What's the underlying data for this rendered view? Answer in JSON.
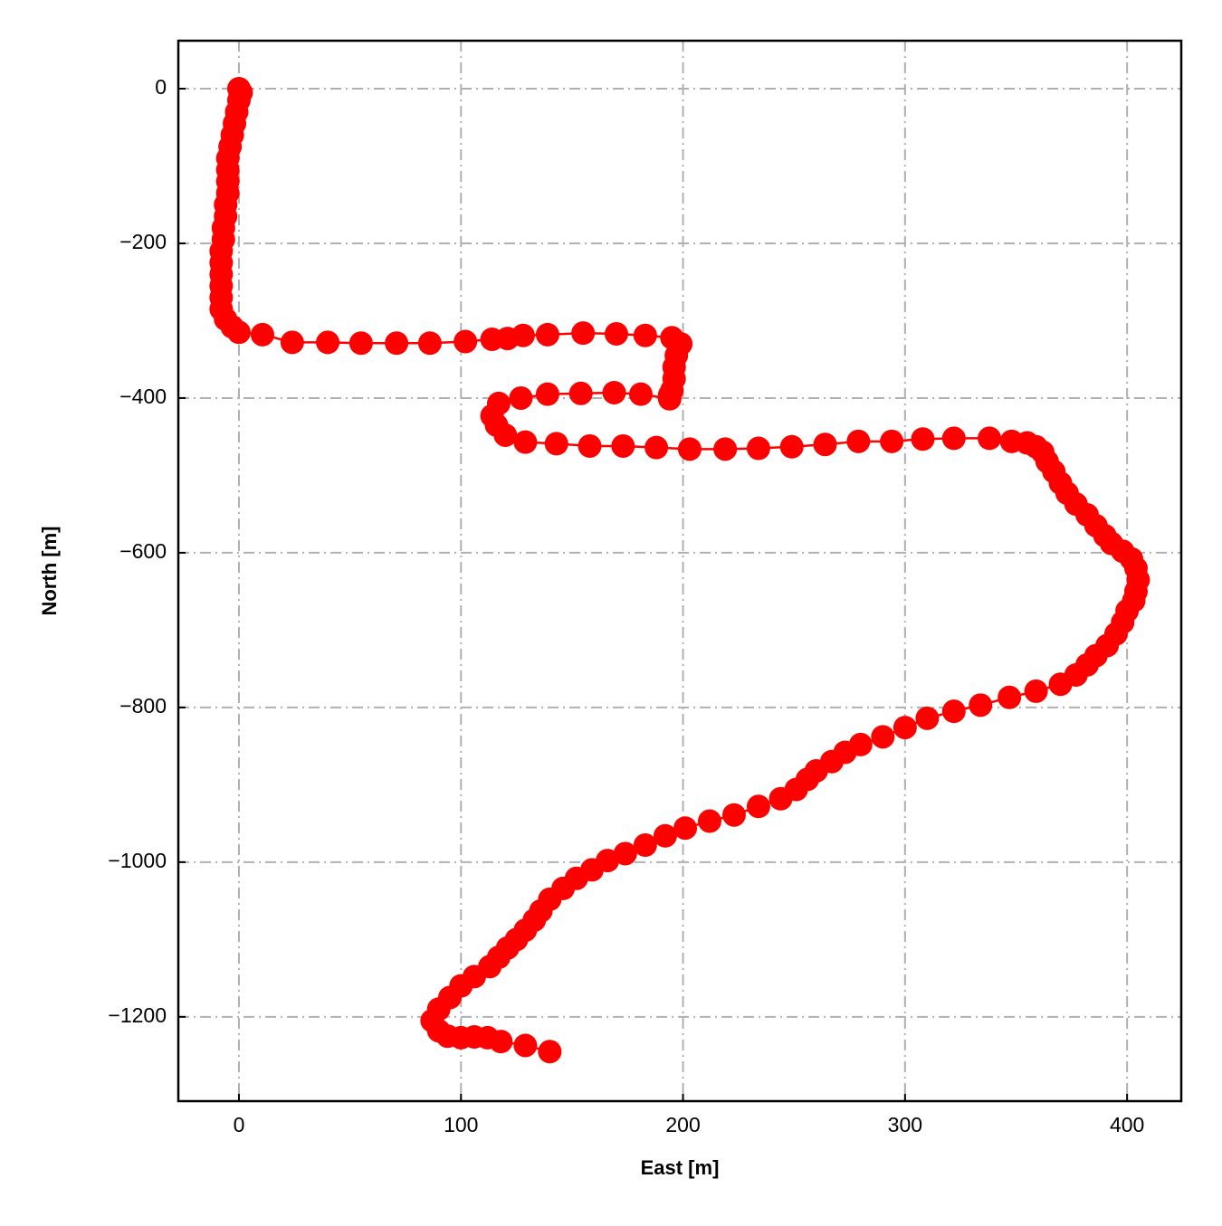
{
  "chart_data": {
    "type": "line",
    "xlabel": "East [m]",
    "ylabel": "North [m]",
    "color": "#ff0000",
    "grid": true,
    "xlim": [
      -27.3,
      424.4
    ],
    "ylim": [
      -1309,
      62
    ],
    "xticks": [
      0,
      100,
      200,
      300,
      400
    ],
    "yticks": [
      0,
      {
        "value": -200,
        "label": "−200"
      },
      {
        "value": -400,
        "label": "−400"
      },
      {
        "value": -600,
        "label": "−600"
      },
      {
        "value": -800,
        "label": "−800"
      },
      {
        "value": -1000,
        "label": "−1000"
      },
      {
        "value": -1200,
        "label": "−1200"
      }
    ],
    "x": [
      0,
      1,
      0,
      -1,
      -2,
      -3,
      -4,
      -5,
      -5,
      -5,
      -5,
      -6,
      -6,
      -7,
      -7,
      -8,
      -8,
      -8,
      -8,
      -8,
      -8,
      -6,
      -3,
      0,
      10.6,
      24,
      40,
      55,
      71,
      86,
      102,
      114,
      121,
      128,
      139,
      155,
      170,
      183,
      195,
      199,
      197,
      196,
      196,
      195,
      194,
      194,
      181,
      169,
      154,
      139,
      127,
      117,
      114,
      116,
      120,
      129,
      143,
      158,
      173,
      188,
      203,
      219,
      234,
      249,
      264,
      279,
      294,
      308,
      322,
      338,
      348,
      355,
      359,
      362,
      364,
      367,
      370,
      373,
      377,
      382,
      386,
      390,
      393,
      398,
      402,
      404,
      405,
      404,
      403,
      400,
      398,
      395,
      391,
      386,
      382,
      377,
      370,
      359,
      347,
      334,
      322,
      310,
      300,
      290,
      280,
      273,
      267,
      260,
      256,
      251,
      244,
      234,
      223,
      212,
      201,
      192,
      183,
      174,
      166,
      159,
      152,
      146,
      140,
      136,
      133,
      129,
      125,
      121,
      117,
      113,
      106,
      100,
      95,
      90,
      87,
      90,
      94,
      100,
      106,
      112,
      118,
      129,
      140
    ],
    "values": [
      0,
      -5,
      -15,
      -30,
      -45,
      -60,
      -75,
      -90,
      -105,
      -120,
      -135,
      -150,
      -165,
      -180,
      -195,
      -210,
      -225,
      -240,
      -255,
      -270,
      -285,
      -298,
      -308,
      -315,
      -318,
      -328,
      -328,
      -329,
      -329,
      -329,
      -327,
      -324,
      -323,
      -319,
      -318,
      -316,
      -317,
      -319,
      -322,
      -330,
      -345,
      -360,
      -375,
      -390,
      -396,
      -401,
      -395,
      -393,
      -394,
      -395,
      -400,
      -407,
      -423,
      -435,
      -448,
      -457,
      -459,
      -462,
      -462,
      -464,
      -466,
      -466,
      -465,
      -463,
      -460,
      -456,
      -456,
      -453,
      -452,
      -452,
      -456,
      -458,
      -463,
      -470,
      -482,
      -495,
      -510,
      -523,
      -537,
      -551,
      -565,
      -578,
      -588,
      -598,
      -608,
      -620,
      -635,
      -650,
      -662,
      -675,
      -690,
      -705,
      -720,
      -733,
      -745,
      -758,
      -770,
      -779,
      -787,
      -797,
      -805,
      -814,
      -826,
      -838,
      -848,
      -858,
      -870,
      -882,
      -893,
      -906,
      -918,
      -928,
      -939,
      -947,
      -956,
      -966,
      -978,
      -989,
      -998,
      -1010,
      -1021,
      -1034,
      -1048,
      -1063,
      -1075,
      -1088,
      -1100,
      -1111,
      -1123,
      -1135,
      -1148,
      -1160,
      -1175,
      -1190,
      -1205,
      -1218,
      -1225,
      -1227,
      -1226,
      -1227,
      -1232,
      -1237,
      -1245
    ]
  }
}
